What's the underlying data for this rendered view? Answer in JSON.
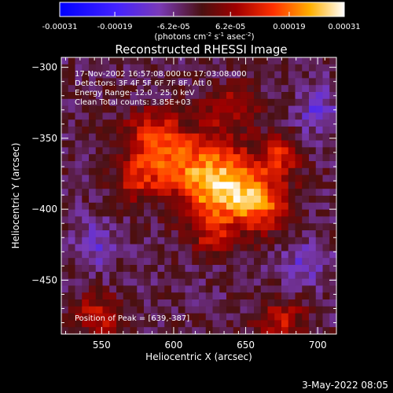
{
  "chart_data": {
    "type": "heatmap",
    "title": "Reconstructed RHESSI Image",
    "xlabel": "Heliocentric X (arcsec)",
    "ylabel": "Heliocentric Y (arcsec)",
    "xlim": [
      522,
      713
    ],
    "ylim": [
      -488,
      -293
    ],
    "x_ticks": [
      550,
      600,
      650,
      700
    ],
    "y_ticks": [
      -300,
      -350,
      -400,
      -450
    ],
    "colorbar": {
      "ticks": [
        -0.00031,
        -0.00019,
        -6.2e-05,
        6.2e-05,
        0.00019,
        0.00031
      ],
      "tick_labels": [
        "-0.00031",
        "-0.00019",
        "-6.2e-05",
        "6.2e-05",
        "0.00019",
        "0.00031"
      ],
      "unit_label": "(photons cm",
      "unit_exp1": "-2",
      "unit_mid": " s",
      "unit_exp2": "-1",
      "unit_mid2": " asec",
      "unit_exp3": "-2",
      "unit_end": ")",
      "min": -0.00031,
      "max": 0.00031
    },
    "annotations": [
      "17-Nov-2002 16:57:08.000 to 17:03:08.000",
      "Detectors: 3F 4F 5F 6F 7F 8F, Att 0",
      "Energy Range: 12.0 - 25.0 keV",
      "Clean     Total counts: 3.85E+03"
    ],
    "peak_label": "Position of Peak = [639,-387]",
    "peak": [
      639,
      -387
    ],
    "sources": [
      {
        "x": 639,
        "y": -387,
        "amp": 0.00031,
        "sx": 22,
        "sy": 18
      },
      {
        "x": 605,
        "y": -365,
        "amp": 0.00016,
        "sx": 20,
        "sy": 15
      },
      {
        "x": 585,
        "y": -345,
        "amp": 0.00013,
        "sx": 14,
        "sy": 12
      },
      {
        "x": 575,
        "y": -378,
        "amp": 0.00012,
        "sx": 12,
        "sy": 12
      },
      {
        "x": 640,
        "y": -330,
        "amp": 0.00011,
        "sx": 14,
        "sy": 12
      },
      {
        "x": 675,
        "y": -362,
        "amp": 0.00014,
        "sx": 8,
        "sy": 10
      },
      {
        "x": 665,
        "y": -400,
        "amp": 0.0001,
        "sx": 10,
        "sy": 10
      },
      {
        "x": 625,
        "y": -420,
        "amp": 8e-05,
        "sx": 12,
        "sy": 8
      },
      {
        "x": 548,
        "y": -475,
        "amp": 0.00014,
        "sx": 12,
        "sy": 10
      },
      {
        "x": 675,
        "y": -478,
        "amp": 0.00013,
        "sx": 12,
        "sy": 10
      },
      {
        "x": 700,
        "y": -330,
        "amp": -9e-05,
        "sx": 10,
        "sy": 12
      },
      {
        "x": 545,
        "y": -425,
        "amp": -8e-05,
        "sx": 10,
        "sy": 12
      },
      {
        "x": 690,
        "y": -440,
        "amp": -8e-05,
        "sx": 12,
        "sy": 12
      }
    ]
  },
  "footer_date": "3-May-2022 08:05"
}
